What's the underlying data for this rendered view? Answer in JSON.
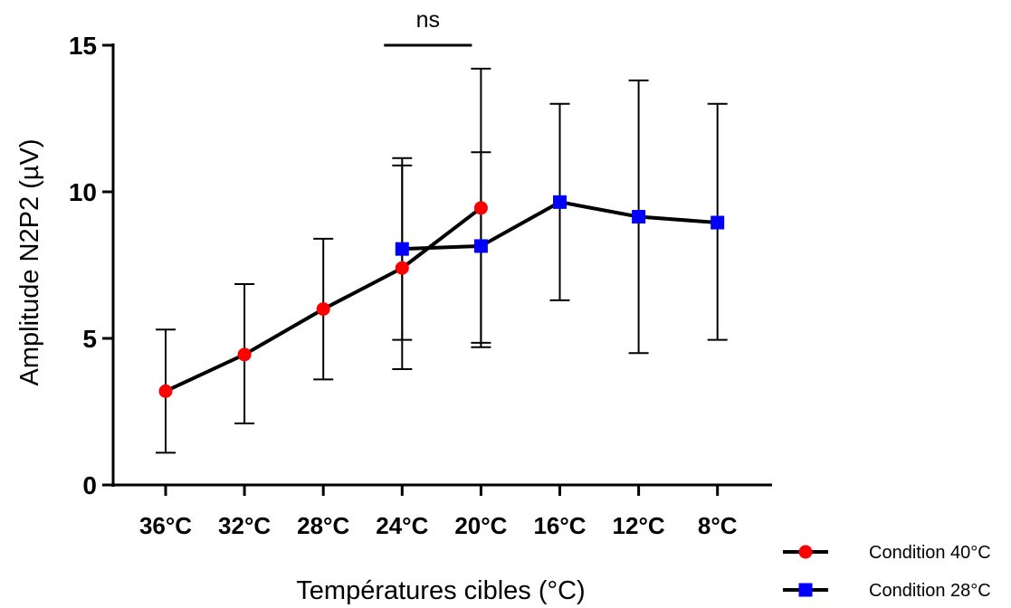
{
  "chart_data": {
    "type": "line",
    "xlabel": "Températures cibles (°C)",
    "ylabel": "Amplitude N2P2 (µV)",
    "categories": [
      "36°C",
      "32°C",
      "28°C",
      "24°C",
      "20°C",
      "16°C",
      "12°C",
      "8°C"
    ],
    "ylim": [
      0,
      15
    ],
    "yticks": [
      "0",
      "5",
      "10",
      "15"
    ],
    "grid": false,
    "legend_position": "bottom-right",
    "series": [
      {
        "name": "Condition 40°C",
        "color": "#ff0000",
        "marker": "circle",
        "values": [
          3.2,
          4.45,
          6.0,
          7.4,
          9.45,
          null,
          null,
          null
        ],
        "error_upper": [
          5.3,
          6.85,
          8.4,
          10.9,
          14.2,
          null,
          null,
          null
        ],
        "error_lower": [
          1.1,
          2.1,
          3.6,
          3.95,
          4.7,
          null,
          null,
          null
        ]
      },
      {
        "name": "Condition 28°C",
        "color": "#0000ff",
        "marker": "square",
        "values": [
          null,
          null,
          null,
          8.05,
          8.15,
          9.65,
          9.15,
          8.95
        ],
        "error_upper": [
          null,
          null,
          null,
          11.15,
          11.35,
          13.0,
          13.8,
          13.0
        ],
        "error_lower": [
          null,
          null,
          null,
          4.95,
          4.85,
          6.3,
          4.5,
          4.95
        ]
      }
    ],
    "annotations": [
      {
        "text": "ns",
        "from_category": "24°C",
        "to_category": "20°C"
      }
    ]
  }
}
